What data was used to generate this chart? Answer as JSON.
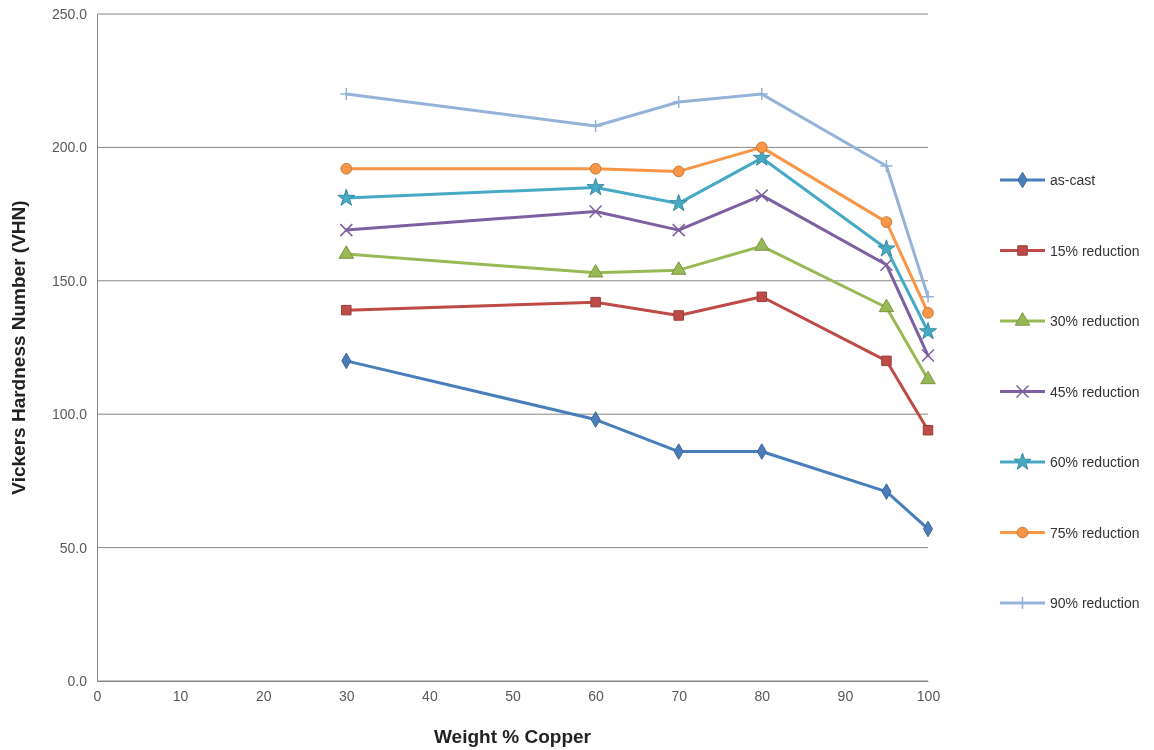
{
  "chart_data": {
    "type": "line",
    "xlabel": "Weight % Copper",
    "ylabel": "Vickers Hardness Number (VHN)",
    "x": [
      30,
      60,
      70,
      80,
      95,
      100
    ],
    "xlim": [
      0,
      100
    ],
    "xticks": [
      0,
      10,
      20,
      30,
      40,
      50,
      60,
      70,
      80,
      90,
      100
    ],
    "ylim": [
      0,
      250
    ],
    "yticks": [
      {
        "value": 0,
        "label": "0.0"
      },
      {
        "value": 50,
        "label": "50.0"
      },
      {
        "value": 100,
        "label": "100.0"
      },
      {
        "value": 150,
        "label": "150.0"
      },
      {
        "value": 200,
        "label": "200.0"
      },
      {
        "value": 250,
        "label": "250.0"
      }
    ],
    "grid": "y",
    "legend": "right",
    "series": [
      {
        "name": "as-cast",
        "color": "#4a7ebb",
        "marker": "diamond",
        "values": [
          120,
          98,
          86,
          86,
          71,
          57
        ]
      },
      {
        "name": "15% reduction",
        "color": "#be4b48",
        "marker": "square",
        "values": [
          139,
          142,
          137,
          144,
          120,
          94
        ]
      },
      {
        "name": "30% reduction",
        "color": "#98b954",
        "marker": "triangle",
        "values": [
          160,
          153,
          154,
          163,
          140,
          113
        ]
      },
      {
        "name": "45% reduction",
        "color": "#7d60a0",
        "marker": "cross",
        "values": [
          169,
          176,
          169,
          182,
          156,
          122
        ]
      },
      {
        "name": "60% reduction",
        "color": "#46aac5",
        "marker": "star",
        "values": [
          181,
          185,
          179,
          196,
          162,
          131
        ]
      },
      {
        "name": "75% reduction",
        "color": "#f79646",
        "marker": "circle",
        "values": [
          192,
          192,
          191,
          200,
          172,
          138
        ]
      },
      {
        "name": "90% reduction",
        "color": "#95b3d7",
        "marker": "plus",
        "values": [
          220,
          208,
          217,
          220,
          193,
          144
        ]
      }
    ]
  }
}
